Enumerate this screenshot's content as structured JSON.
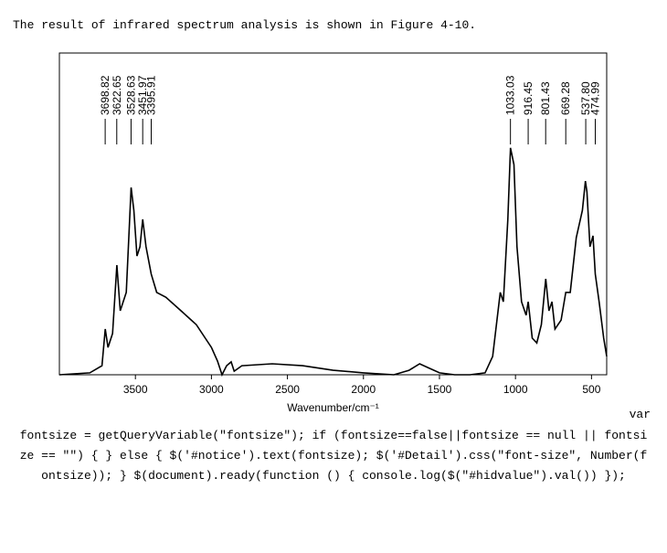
{
  "intro": "The result of infrared spectrum analysis is shown in Figure 4-10.",
  "chart_data": {
    "type": "line",
    "xlabel": "Wavenumber/cm⁻¹",
    "xlim": [
      4000,
      400
    ],
    "xticks": [
      3500,
      3000,
      2500,
      2000,
      1500,
      1000,
      500
    ],
    "ylim": [
      0,
      100
    ],
    "color": "#000000",
    "x": [
      4000,
      3800,
      3720,
      3698,
      3680,
      3650,
      3622,
      3600,
      3560,
      3528,
      3510,
      3490,
      3470,
      3452,
      3430,
      3396,
      3360,
      3300,
      3200,
      3100,
      3000,
      2960,
      2930,
      2900,
      2870,
      2850,
      2800,
      2600,
      2400,
      2200,
      2000,
      1800,
      1700,
      1630,
      1580,
      1500,
      1400,
      1300,
      1200,
      1150,
      1100,
      1080,
      1050,
      1033,
      1010,
      990,
      960,
      930,
      916,
      890,
      860,
      830,
      801,
      780,
      760,
      740,
      700,
      669,
      640,
      600,
      560,
      540,
      530,
      510,
      490,
      475,
      450,
      420,
      400
    ],
    "values": [
      0,
      0.6,
      2.8,
      14.2,
      8.5,
      12.8,
      34.1,
      19.9,
      25.6,
      58.2,
      51.1,
      36.9,
      39.8,
      48.3,
      39.8,
      31.3,
      25.6,
      24.1,
      19.9,
      15.6,
      8.5,
      4.3,
      0,
      2.8,
      4,
      1.1,
      2.8,
      3.4,
      2.8,
      1.4,
      0.6,
      0,
      1.4,
      3.4,
      2.3,
      0.6,
      0,
      0,
      0.6,
      5.7,
      25.6,
      22.7,
      48.3,
      70.5,
      65.3,
      39.8,
      22.7,
      18.5,
      22.7,
      11.4,
      9.9,
      15.6,
      29.8,
      19.9,
      22.7,
      14.2,
      17,
      25.6,
      25.6,
      42.6,
      51.1,
      60.2,
      56.8,
      39.8,
      43.2,
      31.3,
      22.7,
      11.4,
      5.7
    ],
    "peaks": [
      3698.82,
      3622.65,
      3528.63,
      3451.97,
      3395.91,
      1033.03,
      916.45,
      801.43,
      669.28,
      {
        "value": 537.8,
        "label": "537.80"
      },
      474.99
    ]
  },
  "code_lead": "var",
  "code": "fontsize = getQueryVariable(\"fontsize\"); if (fontsize==false||fontsize == null || fontsize == \"\") { } else { $('#notice').text(fontsize); $('#Detail').css(\"font-size\", Number(fontsize)); } $(document).ready(function () { console.log($(\"#hidvalue\").val()) });"
}
